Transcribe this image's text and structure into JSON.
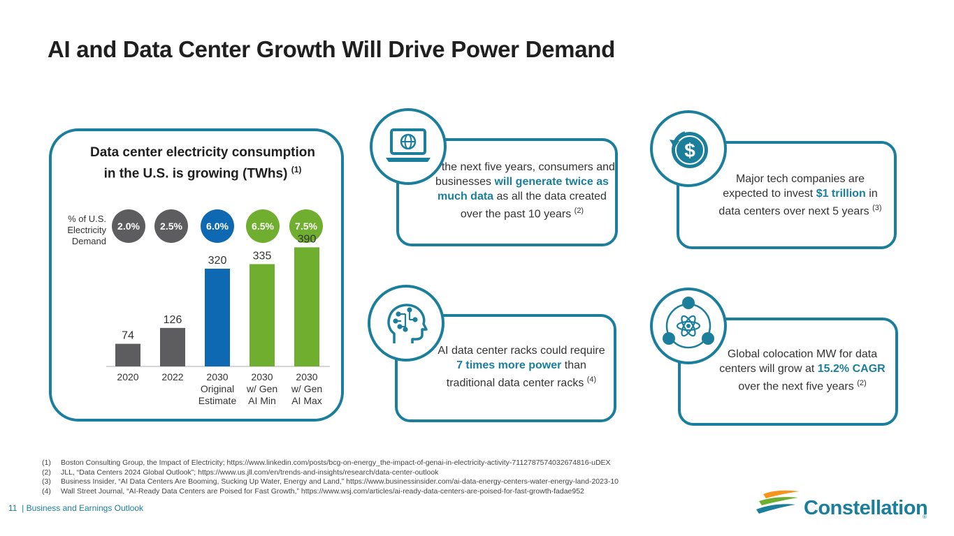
{
  "title": "AI and Data Center Growth Will Drive Power Demand",
  "chart": {
    "title_line1": "Data center electricity consumption",
    "title_line2": "in the U.S. is growing (TWhs)",
    "title_note": "(1)",
    "pct_label": [
      "% of U.S.",
      "Electricity",
      "Demand"
    ],
    "pct_values": [
      "2.0%",
      "2.5%",
      "6.0%",
      "6.5%",
      "7.5%"
    ]
  },
  "chart_data": {
    "type": "bar",
    "categories": [
      "2020",
      "2022",
      "2030 Original Estimate",
      "2030 w/ Gen AI Min",
      "2030 w/ Gen AI Max"
    ],
    "category_lines": [
      [
        "2020"
      ],
      [
        "2022"
      ],
      [
        "2030",
        "Original",
        "Estimate"
      ],
      [
        "2030",
        "w/ Gen",
        "AI Min"
      ],
      [
        "2030",
        "w/ Gen",
        "AI Max"
      ]
    ],
    "values": [
      74,
      126,
      320,
      335,
      390
    ],
    "colors": [
      "#5d5d5f",
      "#5d5d5f",
      "#0f68b2",
      "#6fae2e",
      "#6fae2e"
    ],
    "ylim": [
      0,
      400
    ],
    "grid": false
  },
  "cards": {
    "laptop": {
      "icon": "laptop-globe-icon",
      "pre": "In the next five years, consumers and businesses",
      "hl": "will generate twice as much data",
      "post": "as all the data created over the past 10 years",
      "note": "(2)"
    },
    "invest": {
      "icon": "dollar-cycle-icon",
      "pre": "Major tech companies are expected to invest",
      "hl": "$1 trillion",
      "post": "in data centers over next 5 years",
      "note": "(3)"
    },
    "ai": {
      "icon": "ai-head-icon",
      "pre": "AI data center racks could require",
      "hl": "7 times more power",
      "post": "than traditional data center racks",
      "note": "(4)"
    },
    "colo": {
      "icon": "atom-network-icon",
      "pre": "Global colocation MW for data centers will grow at",
      "hl": "15.2% CAGR",
      "post": "over the next five years",
      "note": "(2)"
    }
  },
  "footnotes": [
    {
      "num": "(1)",
      "text": "Boston Consulting Group, the Impact of Electricity; https://www.linkedin.com/posts/bcg-on-energy_the-impact-of-genai-in-electricity-activity-7112787574032674816-uDEX"
    },
    {
      "num": "(2)",
      "text": "JLL, “Data Centers 2024 Global Outlook”; https://www.us.jll.com/en/trends-and-insights/research/data-center-outlook"
    },
    {
      "num": "(3)",
      "text": "Business Insider, “AI Data Centers Are Booming, Sucking Up Water, Energy and Land,” https://www.businessinsider.com/ai-data-energy-centers-water-energy-land-2023-10"
    },
    {
      "num": "(4)",
      "text": "Wall Street Journal, “AI-Ready Data Centers are Poised for Fast Growth,” https://www.wsj.com/articles/ai-ready-data-centers-are-poised-for-fast-growth-fadae952"
    }
  ],
  "footer": {
    "page": "11",
    "section": "| Business and Earnings Outlook"
  },
  "logo": {
    "text": "Constellation",
    "reg": "®"
  }
}
